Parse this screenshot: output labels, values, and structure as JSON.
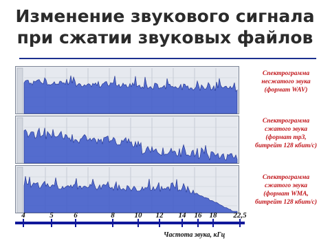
{
  "slide": {
    "title_line1": "Изменение звукового сигнала",
    "title_line2": "при сжатии звуковых файлов"
  },
  "spectrograms": [
    {
      "caption_lines": [
        "Спектрограмма",
        "несжатого звука",
        "(формат WAV)"
      ],
      "color": "#3a56c8"
    },
    {
      "caption_lines": [
        "Спектрограмма",
        "сжатого звука",
        "(формат mp3,",
        "битрейт 128 кбит/с)"
      ],
      "color": "#3a56c8"
    },
    {
      "caption_lines": [
        "Спектрограмма",
        "сжатого звука",
        "(формат WMA,",
        "битрейт 128 кбит/с)"
      ],
      "color": "#3a56c8"
    }
  ],
  "axis": {
    "ticks": [
      "4",
      "5",
      "6",
      "8",
      "10",
      "12",
      "14",
      "16",
      "18",
      "22,5"
    ],
    "label": "Частота звука, кГц"
  },
  "colors": {
    "title": "#2b2b2b",
    "rule": "#1c2f8f",
    "caption": "#c0151a",
    "axis": "#10189a",
    "spectrum": "#3a56c8",
    "panel": "#e6e9ef"
  }
}
